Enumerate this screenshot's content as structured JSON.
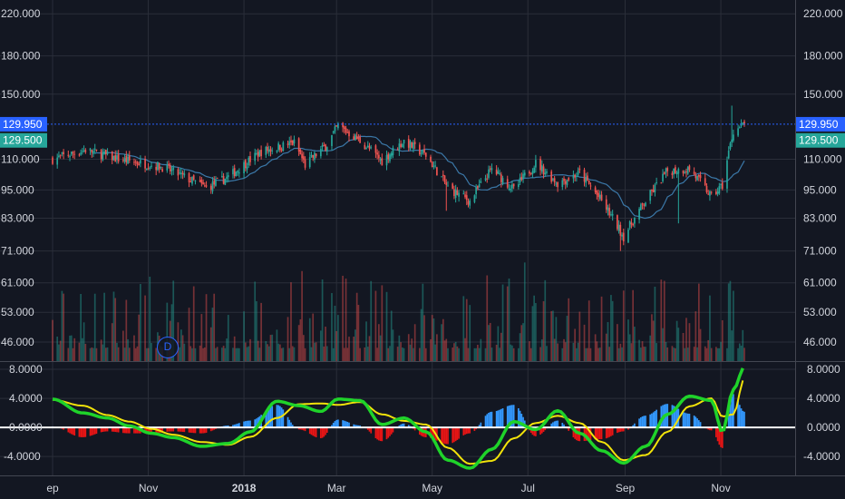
{
  "colors": {
    "background": "#131722",
    "grid": "#2a2e39",
    "axis_text": "#d1d4dc",
    "up": "#26a69a",
    "down": "#ef5350",
    "ma": "#3b78a8",
    "last_price": "#2962ff",
    "close_tag": "#26a69a",
    "osc_fast": "#1fd32a",
    "osc_slow": "#f2e30a",
    "osc_pos_hist": "#3399ff",
    "osc_neg_hist": "#e81515",
    "zero_line": "#ffffff"
  },
  "chart_data": [
    {
      "type": "candlestick",
      "title": "",
      "interval_marker": "D",
      "x_tick_labels": [
        "ep",
        "Nov",
        "2018",
        "Mar",
        "May",
        "Jul",
        "Sep",
        "Nov"
      ],
      "y_scale": "log",
      "y_ticks": [
        "220.000",
        "180.000",
        "150.000",
        "110.000",
        "95.000",
        "83.000",
        "71.000",
        "61.000",
        "53.000",
        "46.000"
      ],
      "ylim": [
        42,
        235
      ],
      "last_price": {
        "value": 129.95,
        "label": "129.950"
      },
      "close_tag": {
        "value": 129.5,
        "label": "129.500"
      },
      "anchors": [
        {
          "date": "2017-09-01",
          "close": 110
        },
        {
          "date": "2017-09-22",
          "close": 115
        },
        {
          "date": "2017-10-13",
          "close": 110
        },
        {
          "date": "2017-11-10",
          "close": 106
        },
        {
          "date": "2017-12-08",
          "close": 96
        },
        {
          "date": "2017-12-22",
          "close": 101
        },
        {
          "date": "2018-01-12",
          "close": 114
        },
        {
          "date": "2018-02-02",
          "close": 119
        },
        {
          "date": "2018-02-09",
          "close": 107
        },
        {
          "date": "2018-02-23",
          "close": 118
        },
        {
          "date": "2018-03-02",
          "close": 129
        },
        {
          "date": "2018-03-16",
          "close": 120
        },
        {
          "date": "2018-03-30",
          "close": 109
        },
        {
          "date": "2018-04-13",
          "close": 120
        },
        {
          "date": "2018-04-27",
          "close": 112
        },
        {
          "date": "2018-05-11",
          "close": 96
        },
        {
          "date": "2018-05-25",
          "close": 90
        },
        {
          "date": "2018-06-08",
          "close": 105
        },
        {
          "date": "2018-06-22",
          "close": 95
        },
        {
          "date": "2018-07-06",
          "close": 108
        },
        {
          "date": "2018-07-20",
          "close": 98
        },
        {
          "date": "2018-08-03",
          "close": 103
        },
        {
          "date": "2018-08-17",
          "close": 90
        },
        {
          "date": "2018-08-31",
          "close": 76
        },
        {
          "date": "2018-09-14",
          "close": 90
        },
        {
          "date": "2018-09-28",
          "close": 104
        },
        {
          "date": "2018-10-12",
          "close": 105
        },
        {
          "date": "2018-10-26",
          "close": 92
        },
        {
          "date": "2018-11-02",
          "close": 97
        },
        {
          "date": "2018-11-09",
          "close": 126
        },
        {
          "date": "2018-11-16",
          "close": 129.5
        }
      ]
    },
    {
      "type": "oscillator",
      "title": "",
      "y_ticks": [
        "8.0000",
        "4.0000",
        "0.0000",
        "-4.0000"
      ],
      "ylim": [
        -6.6,
        9.0
      ],
      "series": [
        {
          "role": "fast",
          "color": "#1fd32a",
          "points": [
            [
              "2017-09-01",
              3.9
            ],
            [
              "2017-09-20",
              2.0
            ],
            [
              "2017-10-06",
              1.3
            ],
            [
              "2017-10-20",
              0.2
            ],
            [
              "2017-11-03",
              -0.8
            ],
            [
              "2017-11-17",
              -1.4
            ],
            [
              "2017-12-05",
              -2.6
            ],
            [
              "2017-12-22",
              -2.2
            ],
            [
              "2018-01-05",
              -0.6
            ],
            [
              "2018-01-22",
              3.6
            ],
            [
              "2018-02-05",
              3.0
            ],
            [
              "2018-02-19",
              2.2
            ],
            [
              "2018-03-02",
              3.9
            ],
            [
              "2018-03-16",
              3.7
            ],
            [
              "2018-03-30",
              0.4
            ],
            [
              "2018-04-13",
              1.3
            ],
            [
              "2018-04-27",
              -0.6
            ],
            [
              "2018-05-11",
              -4.5
            ],
            [
              "2018-05-25",
              -5.6
            ],
            [
              "2018-06-08",
              -3.0
            ],
            [
              "2018-06-22",
              0.8
            ],
            [
              "2018-07-06",
              -0.3
            ],
            [
              "2018-07-20",
              2.3
            ],
            [
              "2018-08-03",
              -0.8
            ],
            [
              "2018-08-17",
              -3.2
            ],
            [
              "2018-08-31",
              -4.9
            ],
            [
              "2018-09-14",
              -2.6
            ],
            [
              "2018-09-28",
              1.8
            ],
            [
              "2018-10-12",
              4.3
            ],
            [
              "2018-10-26",
              3.7
            ],
            [
              "2018-11-02",
              -0.6
            ],
            [
              "2018-11-09",
              5.2
            ],
            [
              "2018-11-16",
              8.3
            ]
          ]
        },
        {
          "role": "slow",
          "color": "#f2e30a",
          "points": [
            [
              "2017-09-01",
              3.8
            ],
            [
              "2017-09-20",
              3.0
            ],
            [
              "2017-10-06",
              1.7
            ],
            [
              "2017-10-20",
              0.8
            ],
            [
              "2017-11-03",
              -0.2
            ],
            [
              "2017-11-17",
              -1.0
            ],
            [
              "2017-12-05",
              -2.0
            ],
            [
              "2017-12-22",
              -2.4
            ],
            [
              "2018-01-05",
              -1.3
            ],
            [
              "2018-01-22",
              1.3
            ],
            [
              "2018-02-05",
              3.2
            ],
            [
              "2018-02-19",
              3.3
            ],
            [
              "2018-03-02",
              3.1
            ],
            [
              "2018-03-16",
              3.5
            ],
            [
              "2018-03-30",
              1.8
            ],
            [
              "2018-04-13",
              0.9
            ],
            [
              "2018-04-27",
              0.4
            ],
            [
              "2018-05-11",
              -2.8
            ],
            [
              "2018-05-25",
              -5.0
            ],
            [
              "2018-06-08",
              -4.6
            ],
            [
              "2018-06-22",
              -1.5
            ],
            [
              "2018-07-06",
              0.6
            ],
            [
              "2018-07-20",
              1.6
            ],
            [
              "2018-08-03",
              0.6
            ],
            [
              "2018-08-17",
              -2.0
            ],
            [
              "2018-08-31",
              -4.5
            ],
            [
              "2018-09-14",
              -3.8
            ],
            [
              "2018-09-28",
              -0.6
            ],
            [
              "2018-10-12",
              2.9
            ],
            [
              "2018-10-26",
              4.0
            ],
            [
              "2018-11-02",
              1.5
            ],
            [
              "2018-11-09",
              1.8
            ],
            [
              "2018-11-16",
              6.7
            ]
          ]
        }
      ]
    }
  ]
}
